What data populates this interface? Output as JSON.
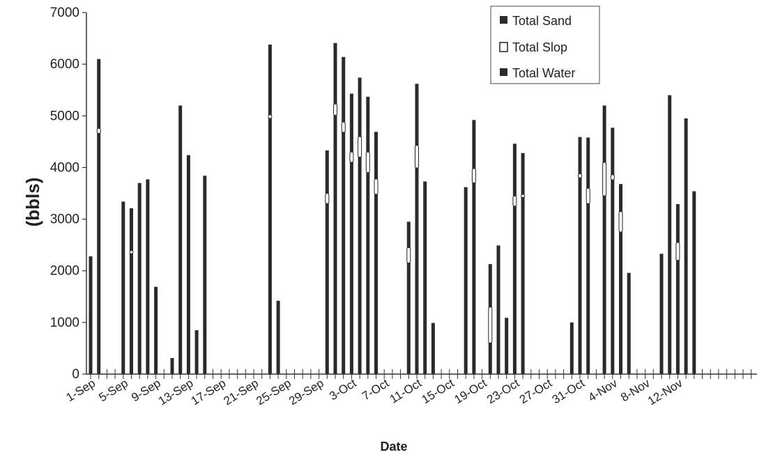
{
  "chart_data": {
    "type": "bar",
    "ylabel": "(bbls)",
    "xlabel": "Date",
    "ylim": [
      0,
      7000
    ],
    "yticks": [
      0,
      1000,
      2000,
      3000,
      4000,
      5000,
      6000,
      7000
    ],
    "x_start": "1-Sep",
    "x_end": "24-Nov",
    "x_tick_labels": [
      "1-Sep",
      "5-Sep",
      "9-Sep",
      "13-Sep",
      "17-Sep",
      "21-Sep",
      "25-Sep",
      "29-Sep",
      "3-Oct",
      "7-Oct",
      "11-Oct",
      "15-Oct",
      "19-Oct",
      "23-Oct",
      "27-Oct",
      "31-Oct",
      "4-Nov",
      "8-Nov",
      "12-Nov"
    ],
    "grid": false,
    "legend_position": "top-right",
    "legend": [
      "Total Sand",
      "Total Slop",
      "Total Water"
    ],
    "series": [
      {
        "name": "Total Water",
        "color": "#2b2b2b",
        "points": [
          {
            "x": "1-Sep",
            "y": 2280
          },
          {
            "x": "2-Sep",
            "y": 6100
          },
          {
            "x": "5-Sep",
            "y": 3340
          },
          {
            "x": "6-Sep",
            "y": 3210
          },
          {
            "x": "7-Sep",
            "y": 3700
          },
          {
            "x": "8-Sep",
            "y": 3770
          },
          {
            "x": "9-Sep",
            "y": 1690
          },
          {
            "x": "11-Sep",
            "y": 310
          },
          {
            "x": "12-Sep",
            "y": 5200
          },
          {
            "x": "13-Sep",
            "y": 4240
          },
          {
            "x": "14-Sep",
            "y": 850
          },
          {
            "x": "15-Sep",
            "y": 3840
          },
          {
            "x": "23-Sep",
            "y": 6380
          },
          {
            "x": "24-Sep",
            "y": 1420
          },
          {
            "x": "30-Sep",
            "y": 4330
          },
          {
            "x": "1-Oct",
            "y": 6410
          },
          {
            "x": "2-Oct",
            "y": 6140
          },
          {
            "x": "3-Oct",
            "y": 5430
          },
          {
            "x": "4-Oct",
            "y": 5740
          },
          {
            "x": "5-Oct",
            "y": 5370
          },
          {
            "x": "6-Oct",
            "y": 4690
          },
          {
            "x": "10-Oct",
            "y": 2950
          },
          {
            "x": "11-Oct",
            "y": 5620
          },
          {
            "x": "12-Oct",
            "y": 3730
          },
          {
            "x": "13-Oct",
            "y": 990
          },
          {
            "x": "17-Oct",
            "y": 3620
          },
          {
            "x": "18-Oct",
            "y": 4920
          },
          {
            "x": "20-Oct",
            "y": 2130
          },
          {
            "x": "21-Oct",
            "y": 2490
          },
          {
            "x": "22-Oct",
            "y": 1090
          },
          {
            "x": "23-Oct",
            "y": 4460
          },
          {
            "x": "24-Oct",
            "y": 4280
          },
          {
            "x": "30-Oct",
            "y": 1000
          },
          {
            "x": "31-Oct",
            "y": 4590
          },
          {
            "x": "1-Nov",
            "y": 4580
          },
          {
            "x": "3-Nov",
            "y": 5200
          },
          {
            "x": "4-Nov",
            "y": 4770
          },
          {
            "x": "5-Nov",
            "y": 3680
          },
          {
            "x": "6-Nov",
            "y": 1960
          },
          {
            "x": "10-Nov",
            "y": 2330
          },
          {
            "x": "11-Nov",
            "y": 5400
          },
          {
            "x": "12-Nov",
            "y": 3290
          },
          {
            "x": "13-Nov",
            "y": 4950
          },
          {
            "x": "14-Nov",
            "y": 3540
          }
        ]
      },
      {
        "name": "Total Slop",
        "color": "#ffffff",
        "points": [
          {
            "x": "2-Sep",
            "y": [
              4660,
              4760
            ]
          },
          {
            "x": "6-Sep",
            "y": [
              2330,
              2390
            ]
          },
          {
            "x": "23-Sep",
            "y": [
              4950,
              5020
            ]
          },
          {
            "x": "30-Sep",
            "y": [
              3300,
              3500
            ]
          },
          {
            "x": "1-Oct",
            "y": [
              5010,
              5230
            ]
          },
          {
            "x": "2-Oct",
            "y": [
              4680,
              4880
            ]
          },
          {
            "x": "3-Oct",
            "y": [
              4100,
              4300
            ]
          },
          {
            "x": "4-Oct",
            "y": [
              4200,
              4600
            ]
          },
          {
            "x": "5-Oct",
            "y": [
              3900,
              4300
            ]
          },
          {
            "x": "6-Oct",
            "y": [
              3480,
              3780
            ]
          },
          {
            "x": "10-Oct",
            "y": [
              2150,
              2450
            ]
          },
          {
            "x": "11-Oct",
            "y": [
              3990,
              4430
            ]
          },
          {
            "x": "18-Oct",
            "y": [
              3700,
              3980
            ]
          },
          {
            "x": "20-Oct",
            "y": [
              600,
              1300
            ]
          },
          {
            "x": "23-Oct",
            "y": [
              3250,
              3450
            ]
          },
          {
            "x": "24-Oct",
            "y": [
              3420,
              3480
            ]
          },
          {
            "x": "31-Oct",
            "y": [
              3800,
              3880
            ]
          },
          {
            "x": "1-Nov",
            "y": [
              3300,
              3600
            ]
          },
          {
            "x": "3-Nov",
            "y": [
              3450,
              4100
            ]
          },
          {
            "x": "4-Nov",
            "y": [
              3760,
              3860
            ]
          },
          {
            "x": "5-Nov",
            "y": [
              2750,
              3150
            ]
          },
          {
            "x": "12-Nov",
            "y": [
              2200,
              2550
            ]
          }
        ]
      }
    ]
  }
}
